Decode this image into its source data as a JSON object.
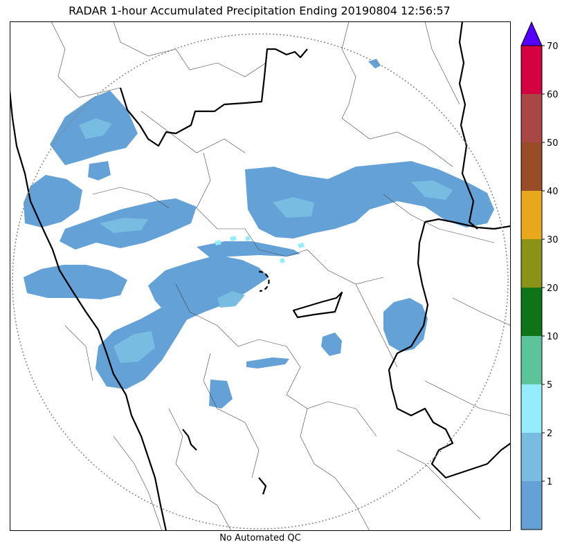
{
  "title": "RADAR 1-hour Accumulated Precipitation Ending 20190804 12:56:57",
  "caption": "No Automated QC",
  "colorbar": {
    "levels": [
      {
        "label": "",
        "color": "#64a1d6"
      },
      {
        "label": "1",
        "color": "#78bce2"
      },
      {
        "label": "2",
        "color": "#94ecfc"
      },
      {
        "label": "5",
        "color": "#5cc39b"
      },
      {
        "label": "10",
        "color": "#0e7415"
      },
      {
        "label": "20",
        "color": "#8b9317"
      },
      {
        "label": "30",
        "color": "#e8a81b"
      },
      {
        "label": "40",
        "color": "#984d28"
      },
      {
        "label": "50",
        "color": "#a84743"
      },
      {
        "label": "60",
        "color": "#d50042"
      }
    ],
    "top_label": "70",
    "extend_color": "#5500ff"
  },
  "colors": {
    "rain_light": "#64a1d6",
    "rain_moderate": "#78bce2",
    "rain_heavy": "#94ecfc",
    "border_major": "#000000",
    "border_minor": "#444444",
    "range_ring": "#888888"
  }
}
